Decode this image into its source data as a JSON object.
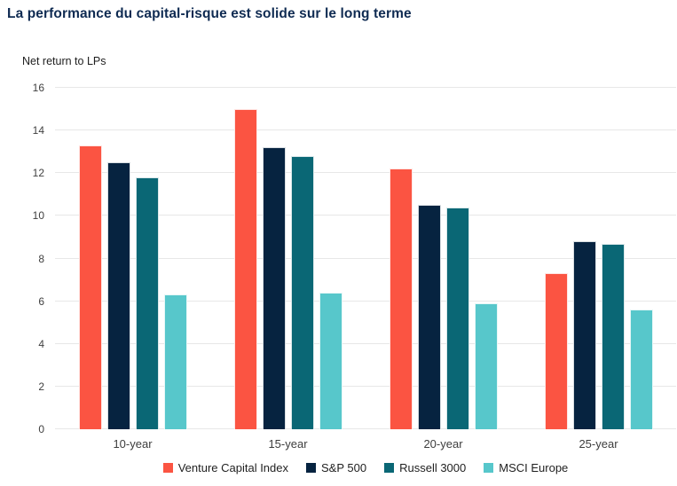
{
  "header": {
    "title": "La performance du capital-risque est solide sur le long terme"
  },
  "chart_data": {
    "type": "bar",
    "title": "La performance du capital-risque est solide sur le long terme",
    "subtitle": "Net return to LPs",
    "categories": [
      "10-year",
      "15-year",
      "20-year",
      "25-year"
    ],
    "series": [
      {
        "name": "Venture Capital Index",
        "color": "#FB5442",
        "values": [
          13.3,
          15.0,
          12.2,
          7.3
        ]
      },
      {
        "name": "S&P 500",
        "color": "#062340",
        "values": [
          12.5,
          13.2,
          10.5,
          8.8
        ]
      },
      {
        "name": "Russell 3000",
        "color": "#0A6775",
        "values": [
          11.8,
          12.8,
          10.4,
          8.7
        ]
      },
      {
        "name": "MSCI Europe",
        "color": "#57C7CB",
        "values": [
          6.3,
          6.4,
          5.9,
          5.6
        ]
      }
    ],
    "xlabel": "",
    "ylabel": "Net return to LPs",
    "ylim": [
      0,
      16
    ],
    "ytick_step": 2,
    "grid": true,
    "legend_position": "bottom",
    "colors": {
      "title_text": "#0f2b52",
      "axis_text": "#404040",
      "gridline": "#e7e7e7",
      "background": "#ffffff"
    }
  }
}
